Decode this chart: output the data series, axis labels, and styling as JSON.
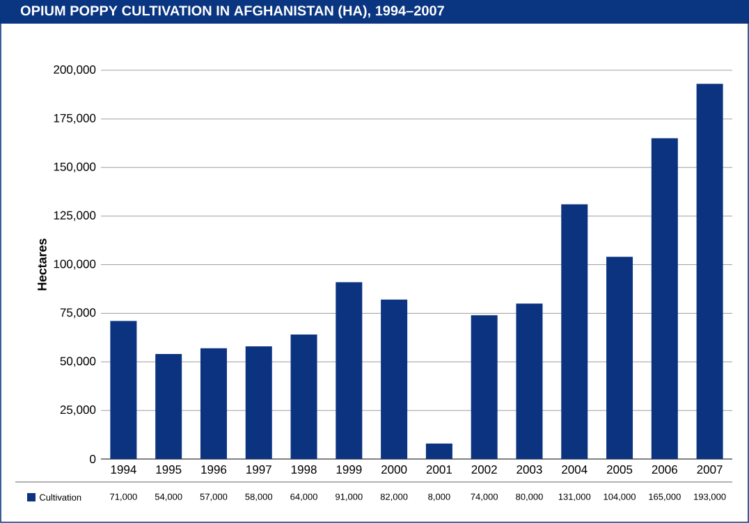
{
  "chart_data": {
    "type": "bar",
    "title": "OPIUM POPPY CULTIVATION IN AFGHANISTAN (HA), 1994–2007",
    "ylabel": "Hectares",
    "categories": [
      "1994",
      "1995",
      "1996",
      "1997",
      "1998",
      "1999",
      "2000",
      "2001",
      "2002",
      "2003",
      "2004",
      "2005",
      "2006",
      "2007"
    ],
    "series": [
      {
        "name": "Cultivation",
        "color": "#0b3380",
        "values": [
          71000,
          54000,
          57000,
          58000,
          64000,
          91000,
          82000,
          8000,
          74000,
          80000,
          131000,
          104000,
          165000,
          193000
        ],
        "value_labels": [
          "71,000",
          "54,000",
          "57,000",
          "58,000",
          "64,000",
          "91,000",
          "82,000",
          "8,000",
          "74,000",
          "80,000",
          "131,000",
          "104,000",
          "165,000",
          "193,000"
        ]
      }
    ],
    "ylim": [
      0,
      200000
    ],
    "yticks": [
      {
        "value": 0,
        "label": "0"
      },
      {
        "value": 25000,
        "label": "25,000"
      },
      {
        "value": 50000,
        "label": "50,000"
      },
      {
        "value": 75000,
        "label": "75,000"
      },
      {
        "value": 100000,
        "label": "100,000"
      },
      {
        "value": 125000,
        "label": "125,000"
      },
      {
        "value": 150000,
        "label": "150,000"
      },
      {
        "value": 175000,
        "label": "175,000"
      },
      {
        "value": 200000,
        "label": "200,000"
      }
    ],
    "grid": "y",
    "legend": "bottom"
  }
}
